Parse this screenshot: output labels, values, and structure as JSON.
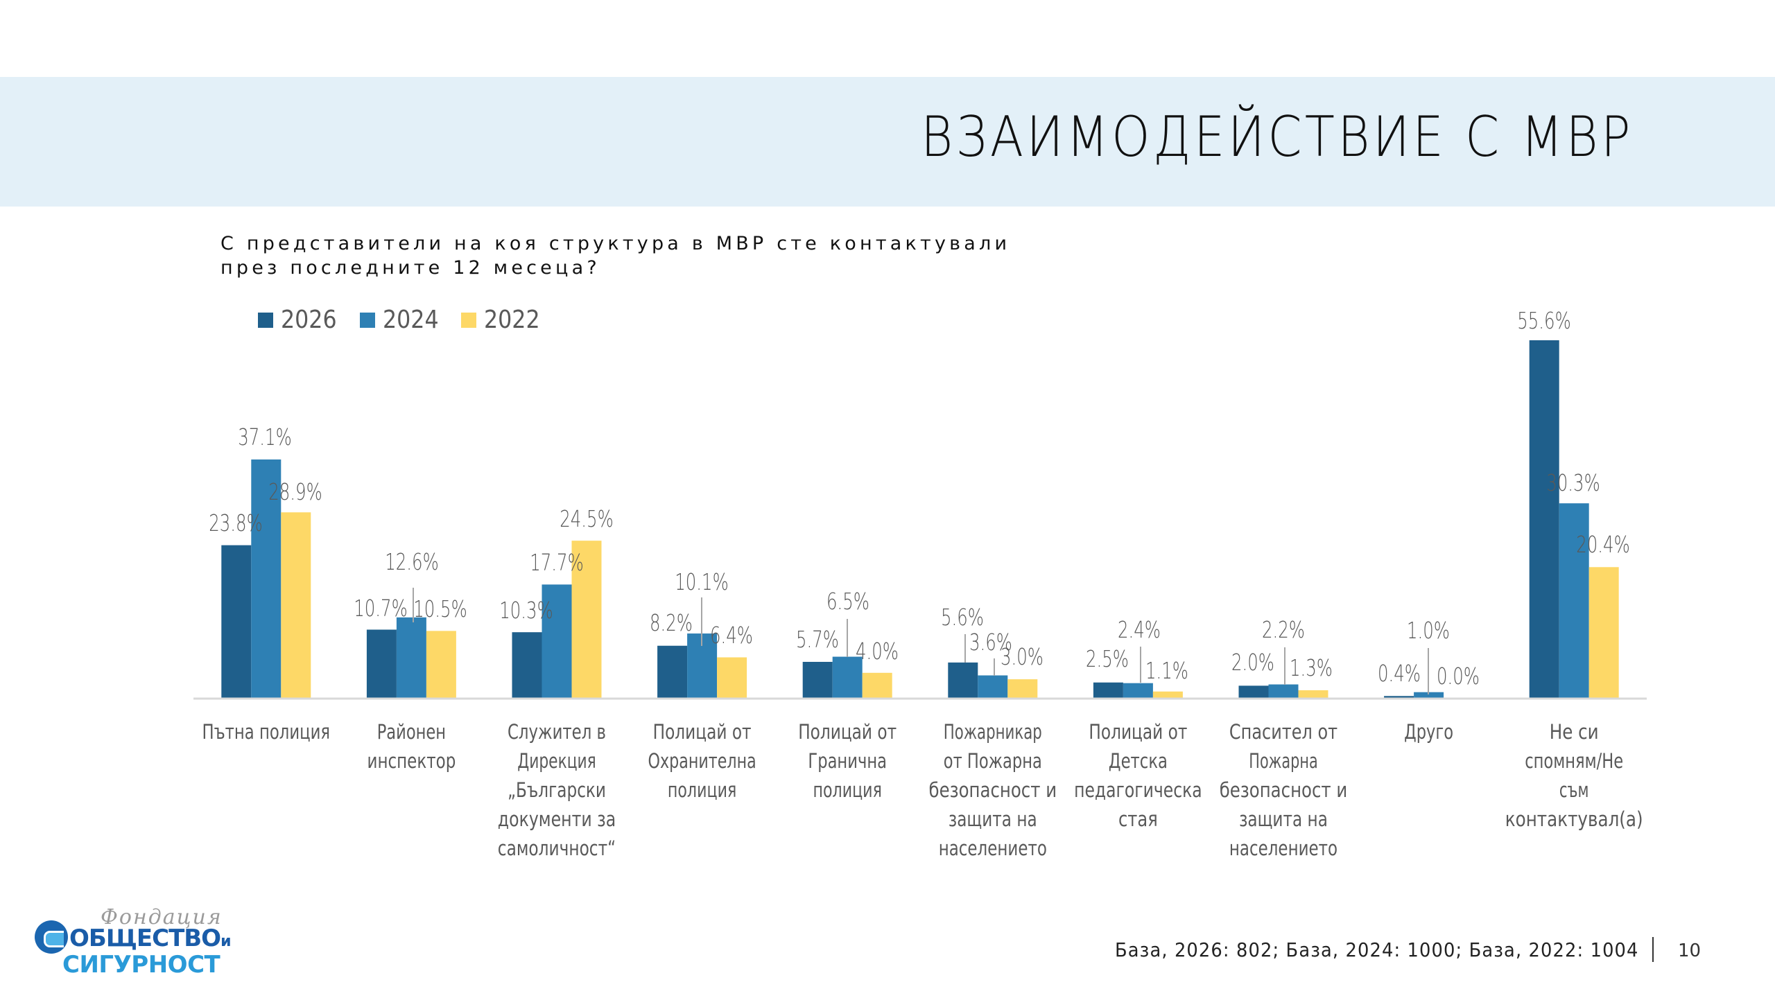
{
  "header": {
    "title": "ВЗАИМОДЕЙСТВИЕ С МВР"
  },
  "question": "С представители на коя структура в МВР сте контактували през последните 12 месеца?",
  "legend": [
    {
      "label": "2026",
      "color": "#1F5F8B"
    },
    {
      "label": "2024",
      "color": "#2E80B4"
    },
    {
      "label": "2022",
      "color": "#FDD867"
    }
  ],
  "chart_data": {
    "type": "bar",
    "title": "С представители на коя структура в МВР сте контактували през последните 12 месеца?",
    "xlabel": "",
    "ylabel": "",
    "ylim": [
      0,
      60
    ],
    "grid": false,
    "legend_position": "top-left",
    "value_suffix": "%",
    "categories": [
      [
        "Пътна полиция"
      ],
      [
        "Районен",
        "инспектор"
      ],
      [
        "Служител в",
        "Дирекция",
        "„Български",
        "документи за",
        "самоличност“"
      ],
      [
        "Полицай от",
        "Охранителна",
        "полиция"
      ],
      [
        "Полицай от",
        "Гранична",
        "полиция"
      ],
      [
        "Пожарникар",
        "от Пожарна",
        "безопасност и",
        "защита на",
        "населението"
      ],
      [
        "Полицай от",
        "Детска",
        "педагогическа",
        "стая"
      ],
      [
        "Спасител от",
        "Пожарна",
        "безопасност и",
        "защита на",
        "населението"
      ],
      [
        "Друго"
      ],
      [
        "Не си",
        "спомням/Не",
        "съм",
        "контактувал(а)"
      ]
    ],
    "series": [
      {
        "name": "2026",
        "color": "#1F5F8B",
        "values": [
          23.8,
          10.7,
          10.3,
          8.2,
          5.7,
          5.6,
          2.5,
          2.0,
          0.4,
          55.6
        ]
      },
      {
        "name": "2024",
        "color": "#2E80B4",
        "values": [
          37.1,
          12.6,
          17.7,
          10.1,
          6.5,
          3.6,
          2.4,
          2.2,
          1.0,
          30.3
        ]
      },
      {
        "name": "2022",
        "color": "#FDD867",
        "values": [
          28.9,
          10.5,
          24.5,
          6.4,
          4.0,
          3.0,
          1.1,
          1.3,
          0.0,
          20.4
        ]
      }
    ]
  },
  "footer": {
    "base_text": "База, 2026: 802; База, 2024: 1000; База, 2022: 1004",
    "page_number": "10"
  },
  "logo": {
    "script_text": "Фондация",
    "line1": "ОБЩЕСТВО",
    "line1_suffix": "и",
    "line2": "СИГУРНОСТ"
  }
}
